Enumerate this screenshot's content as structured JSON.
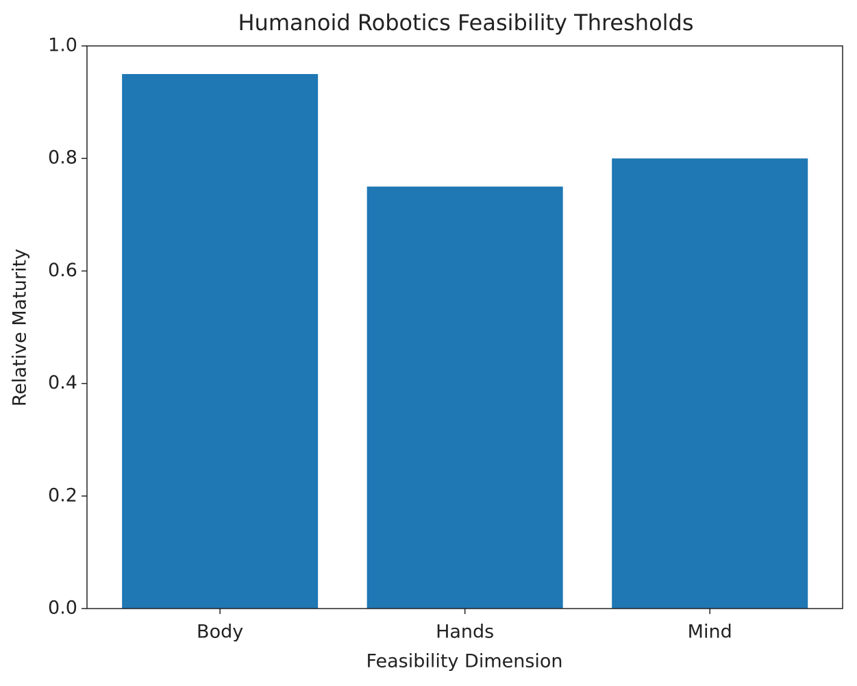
{
  "chart_data": {
    "type": "bar",
    "title": "Humanoid Robotics Feasibility Thresholds",
    "x_label": "Feasibility Dimension",
    "y_label": "Relative Maturity",
    "categories": [
      "Body",
      "Hands",
      "Mind"
    ],
    "values": [
      0.95,
      0.75,
      0.8
    ],
    "color": "#1f77b4",
    "ylim": [
      0,
      1
    ],
    "yticks": [
      {
        "value": 0,
        "label": "0.0"
      },
      0.2,
      0.4,
      0.6,
      0.8,
      {
        "value": 1,
        "label": "1.0"
      }
    ],
    "grid": false
  }
}
